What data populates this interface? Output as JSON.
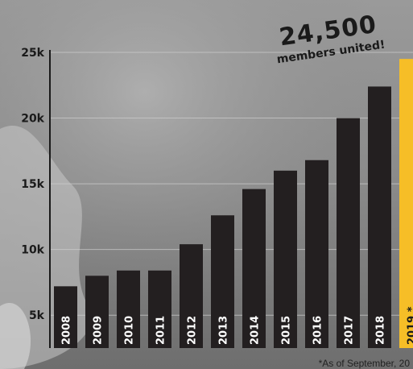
{
  "callout": {
    "value": "24,500",
    "text": "members united!"
  },
  "footnote": "*As of September, 20",
  "colors": {
    "bar": "#231f20",
    "highlight": "#f6be27",
    "tick_text": "#1a1a1a",
    "bar_label": "#ffffff"
  },
  "chart_data": {
    "type": "bar",
    "categories": [
      "2008",
      "2009",
      "2010",
      "2011",
      "2012",
      "2013",
      "2014",
      "2015",
      "2016",
      "2017",
      "2018",
      "2019 *"
    ],
    "values": [
      7200,
      8000,
      8400,
      8400,
      10400,
      12600,
      14600,
      16000,
      16800,
      20000,
      22400,
      24500
    ],
    "highlight_index": 11,
    "yticks": [
      "5k",
      "10k",
      "15k",
      "20k",
      "25k"
    ],
    "ytick_values": [
      5000,
      10000,
      15000,
      20000,
      25000
    ],
    "ylim": [
      2500,
      25000
    ],
    "grid": true,
    "title": "",
    "xlabel": "",
    "ylabel": ""
  }
}
